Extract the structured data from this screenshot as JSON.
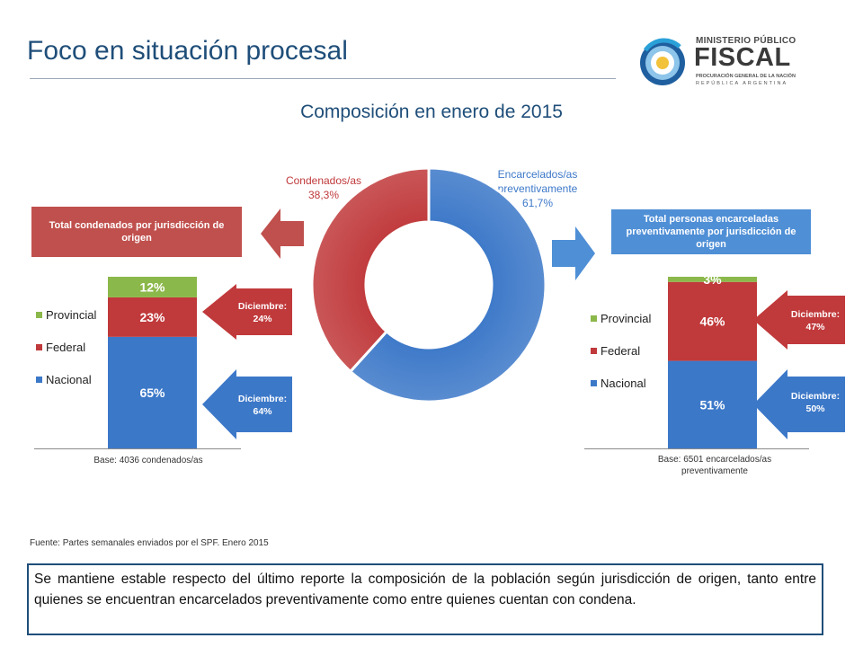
{
  "header": {
    "title": "Foco en situación procesal",
    "logo": {
      "line1": "MINISTERIO PÚBLICO",
      "line2": "FISCAL",
      "line3": "PROCURACIÓN GENERAL DE LA NACIÓN",
      "line4": "REPÚBLICA ARGENTINA"
    }
  },
  "chart_data": [
    {
      "type": "pie",
      "title": "Composición en enero de 2015",
      "labels": [
        "Encarcelados/as preventivamente",
        "Condenados/as"
      ],
      "values": [
        61.7,
        38.3
      ],
      "display_labels": [
        {
          "line1": "Encarcelados/as",
          "line2": "preventivamente",
          "line3": "61,7%"
        },
        {
          "line1": "Condenados/as",
          "line2": "38,3%"
        }
      ],
      "colors": [
        "#3c78c8",
        "#c0393b"
      ]
    },
    {
      "type": "bar",
      "stacked": true,
      "box_title": "Total condenados por jurisdicción de origen",
      "series": [
        {
          "name": "Nacional",
          "values": [
            65
          ],
          "label": "65%",
          "color": "#3c78c8"
        },
        {
          "name": "Federal",
          "values": [
            23
          ],
          "label": "23%",
          "color": "#c0393b"
        },
        {
          "name": "Provincial",
          "values": [
            12
          ],
          "label": "12%",
          "color": "#8bb84a"
        }
      ],
      "base": "Base: 4036 condenados/as",
      "callouts": [
        {
          "line1": "Diciembre:",
          "line2": "24%"
        },
        {
          "line1": "Diciembre:",
          "line2": "64%"
        }
      ]
    },
    {
      "type": "bar",
      "stacked": true,
      "box_title": "Total personas encarceladas preventivamente por jurisdicción de origen",
      "series": [
        {
          "name": "Nacional",
          "values": [
            51
          ],
          "label": "51%",
          "color": "#3c78c8"
        },
        {
          "name": "Federal",
          "values": [
            46
          ],
          "label": "46%",
          "color": "#c0393b"
        },
        {
          "name": "Provincial",
          "values": [
            3
          ],
          "label": "3%",
          "color": "#8bb84a"
        }
      ],
      "base": "Base: 6501 encarcelados/as preventivamente",
      "callouts": [
        {
          "line1": "Diciembre:",
          "line2": "47%"
        },
        {
          "line1": "Diciembre:",
          "line2": "50%"
        }
      ]
    }
  ],
  "source": "Fuente: Partes semanales enviados por el SPF. Enero 2015",
  "summary": "Se mantiene estable respecto del último reporte la composición de la población según jurisdicción de origen, tanto entre quienes se encuentran encarcelados preventivamente como entre quienes cuentan con condena."
}
